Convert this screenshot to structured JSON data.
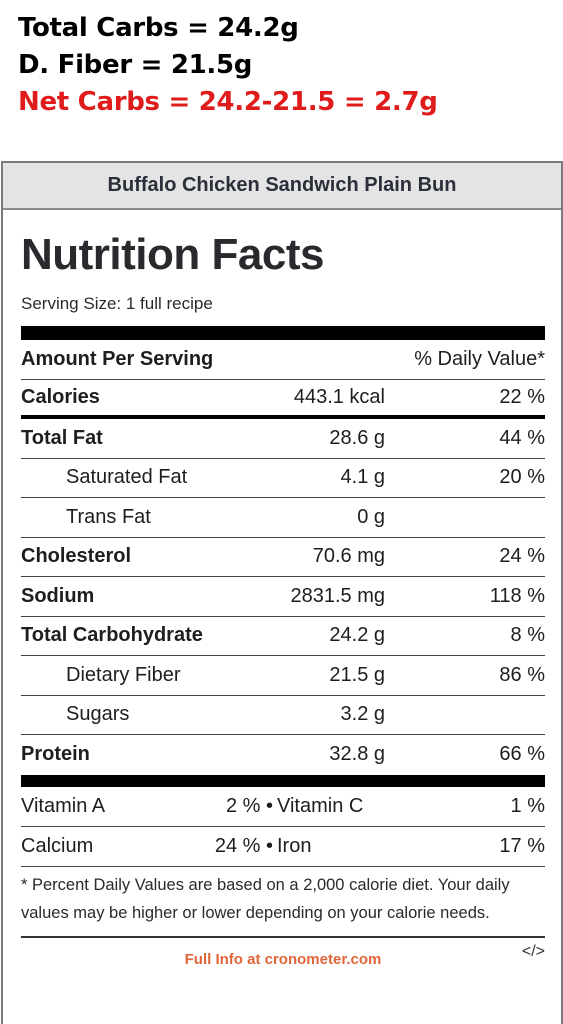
{
  "overlay": {
    "total_carbs": "Total Carbs = 24.2g",
    "fiber": "D. Fiber = 21.5g",
    "net_carbs": "Net Carbs = 24.2-21.5 = 2.7g"
  },
  "label": {
    "header": "Buffalo Chicken Sandwich Plain Bun",
    "title": "Nutrition Facts",
    "serving": "Serving Size: 1 full recipe",
    "amount_per_serving": "Amount Per Serving",
    "daily_value_header": "% Daily Value*",
    "rows": [
      {
        "name": "Calories",
        "amount": "443.1 kcal",
        "dv": "22 %"
      },
      {
        "name": "Total Fat",
        "amount": "28.6 g",
        "dv": "44 %"
      },
      {
        "name": "Saturated Fat",
        "amount": "4.1 g",
        "dv": "20 %"
      },
      {
        "name": "Trans Fat",
        "amount": "0 g",
        "dv": ""
      },
      {
        "name": "Cholesterol",
        "amount": "70.6 mg",
        "dv": "24 %"
      },
      {
        "name": "Sodium",
        "amount": "2831.5 mg",
        "dv": "118 %"
      },
      {
        "name": "Total Carbohydrate",
        "amount": "24.2 g",
        "dv": "8 %"
      },
      {
        "name": "Dietary Fiber",
        "amount": "21.5 g",
        "dv": "86 %"
      },
      {
        "name": "Sugars",
        "amount": "3.2 g",
        "dv": ""
      },
      {
        "name": "Protein",
        "amount": "32.8 g",
        "dv": "66 %"
      }
    ],
    "vitamins": [
      {
        "a_name": "Vitamin A",
        "a_dv": "2 % •",
        "b_name": "Vitamin C",
        "b_dv": "1 %"
      },
      {
        "a_name": "Calcium",
        "a_dv": "24 % •",
        "b_name": "Iron",
        "b_dv": "17 %"
      }
    ],
    "footnote": "* Percent Daily Values are based on a 2,000 calorie diet. Your daily values may be higher or lower depending on your calorie needs.",
    "link": "Full Info at cronometer.com",
    "embed": "</>"
  },
  "colors": {
    "net_carbs": "#e01b1b",
    "link": "#e0653a",
    "header_bg": "#e4e4e4"
  }
}
